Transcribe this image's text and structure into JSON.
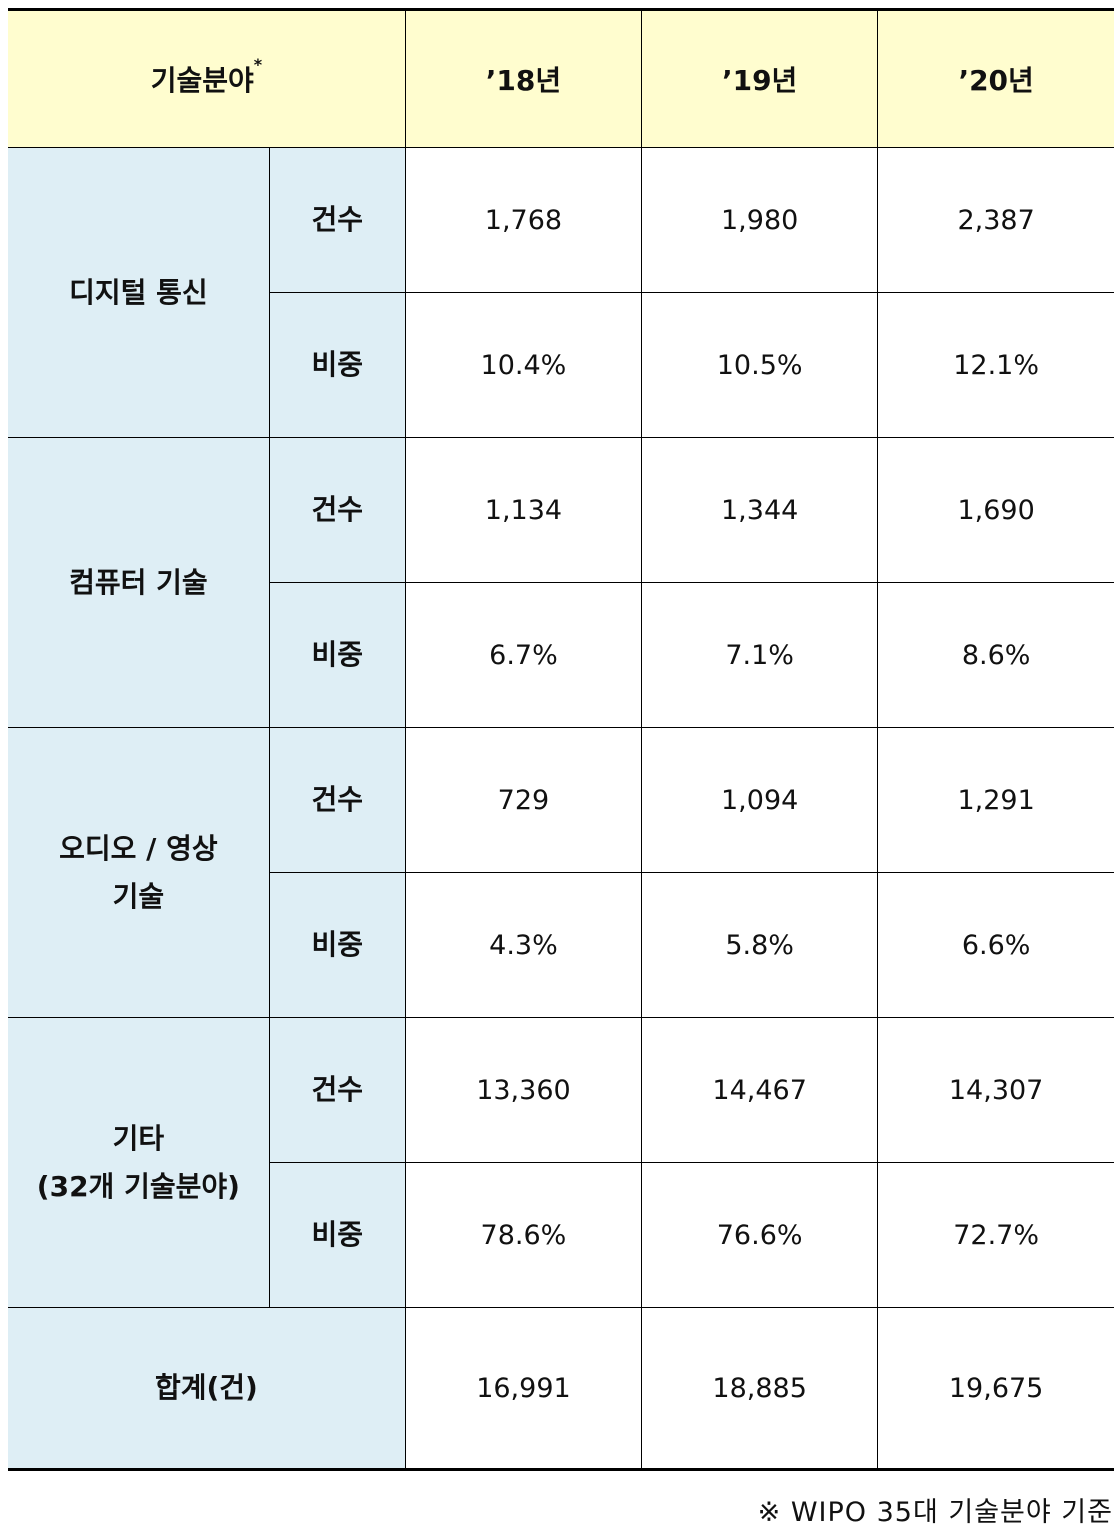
{
  "header": {
    "field_label": "기술분야",
    "field_marker": "*",
    "years": [
      "’18년",
      "’19년",
      "’20년"
    ]
  },
  "sub_labels": {
    "count": "건수",
    "share": "비중"
  },
  "rows": [
    {
      "field_lines": [
        "디지털 통신"
      ],
      "count": [
        "1,768",
        "1,980",
        "2,387"
      ],
      "share": [
        "10.4%",
        "10.5%",
        "12.1%"
      ]
    },
    {
      "field_lines": [
        "컴퓨터 기술"
      ],
      "count": [
        "1,134",
        "1,344",
        "1,690"
      ],
      "share": [
        "6.7%",
        "7.1%",
        "8.6%"
      ]
    },
    {
      "field_lines": [
        "오디오 / 영상",
        "기술"
      ],
      "count": [
        "729",
        "1,094",
        "1,291"
      ],
      "share": [
        "4.3%",
        "5.8%",
        "6.6%"
      ]
    },
    {
      "field_lines": [
        "기타",
        "(32개 기술분야)"
      ],
      "count": [
        "13,360",
        "14,467",
        "14,307"
      ],
      "share": [
        "78.6%",
        "76.6%",
        "72.7%"
      ]
    }
  ],
  "total": {
    "label": "합계(건)",
    "values": [
      "16,991",
      "18,885",
      "19,675"
    ]
  },
  "footnote": "※ WIPO 35대 기술분야 기준",
  "colors": {
    "header_bg": "#fffdcf",
    "label_bg": "#deeef5"
  }
}
